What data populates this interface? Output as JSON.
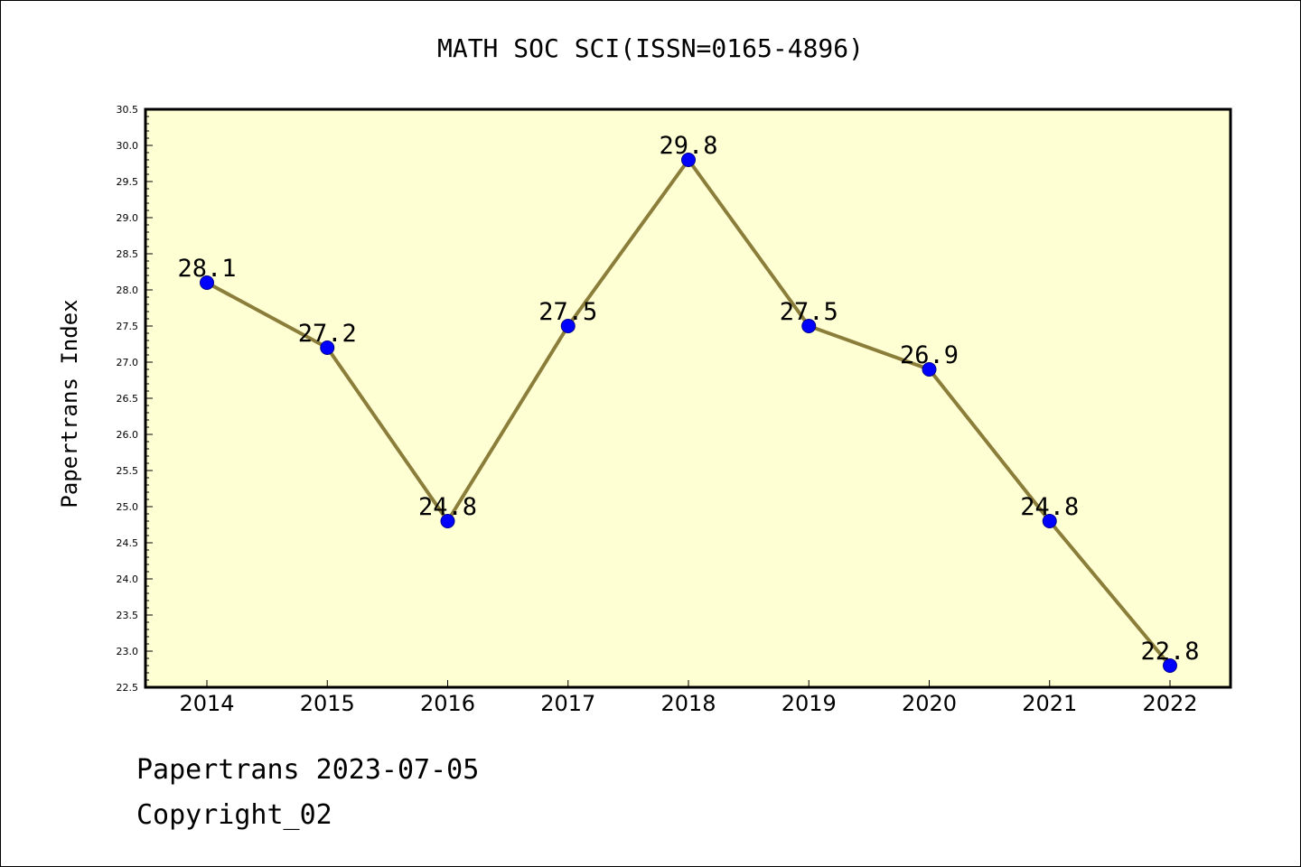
{
  "chart_data": {
    "type": "line",
    "title": "MATH SOC SCI(ISSN=0165-4896)",
    "xlabel": "",
    "ylabel": "Papertrans Index",
    "categories": [
      "2014",
      "2015",
      "2016",
      "2017",
      "2018",
      "2019",
      "2020",
      "2021",
      "2022"
    ],
    "series": [
      {
        "values": [
          28.1,
          27.2,
          24.8,
          27.5,
          29.8,
          27.5,
          26.9,
          24.8,
          22.8
        ],
        "labels": [
          "28.1",
          "27.2",
          "24.8",
          "27.5",
          "29.8",
          "27.5",
          "26.9",
          "24.8",
          "22.8"
        ]
      }
    ],
    "ylim": [
      22.5,
      30.5
    ],
    "yticks": [
      "22.5",
      "23.0",
      "23.5",
      "24.0",
      "24.5",
      "25.0",
      "25.5",
      "26.0",
      "26.5",
      "27.0",
      "27.5",
      "28.0",
      "28.5",
      "29.0",
      "29.5",
      "30.0",
      "30.5"
    ],
    "grid": false,
    "colors": {
      "plot_background": "#ffffd4",
      "line": "#8b7d3a",
      "marker": "#0000ff"
    }
  },
  "footer": {
    "date_line": "Papertrans 2023-07-05",
    "copyright": "Copyright_02"
  }
}
